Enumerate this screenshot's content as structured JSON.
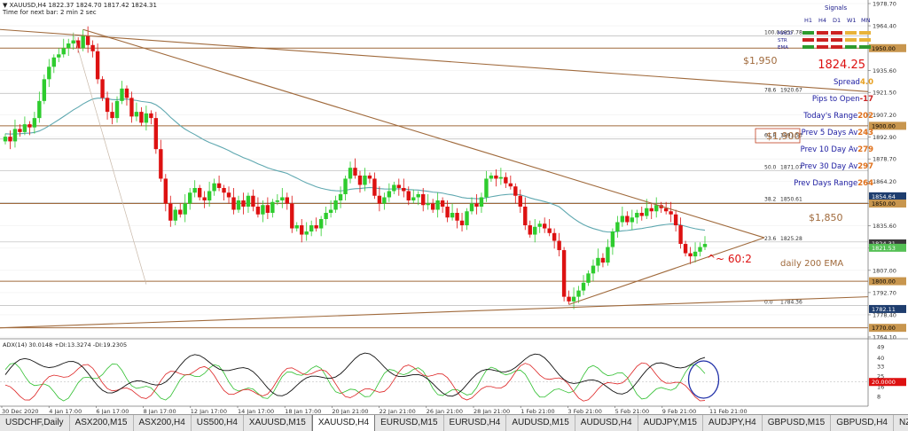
{
  "header": {
    "symbol_line": "▼ XAUUSD,H4 1822.37 1824.70 1817.42 1824.31",
    "timer_line": "Time for next bar: 2 min 2 sec"
  },
  "signals": {
    "title": "Signals",
    "timeframes": [
      "H1",
      "H4",
      "D1",
      "W1",
      "MN"
    ],
    "rows": [
      {
        "label": "MACD",
        "colors": [
          "#2e9a2e",
          "#cc2222",
          "#cc2222",
          "#e8b33a",
          "#e8b33a"
        ]
      },
      {
        "label": "STR",
        "colors": [
          "#cc2222",
          "#cc2222",
          "#cc2222",
          "#e8b33a",
          "#e8b33a"
        ]
      },
      {
        "label": "EMA",
        "colors": [
          "#2e9a2e",
          "#cc2222",
          "#cc2222",
          "#2e9a2e",
          "#2e9a2e"
        ]
      }
    ]
  },
  "info_panel": {
    "price": "1824.25",
    "rows": [
      {
        "label": "Spread",
        "value": "4.0",
        "color": "#e8a020"
      },
      {
        "label": "Pips to Open",
        "value": "-17",
        "color": "#cc2222"
      },
      {
        "label": "Today's Range",
        "value": "202",
        "color": "#e0701a"
      },
      {
        "label": "Prev 5 Days Av",
        "value": "243",
        "color": "#e0701a"
      },
      {
        "label": "Prev 10 Day Av",
        "value": "279",
        "color": "#e0701a"
      },
      {
        "label": "Prev 30 Day Av",
        "value": "297",
        "color": "#e0701a"
      },
      {
        "label": "Prev Days Range",
        "value": "264",
        "color": "#e0701a"
      }
    ]
  },
  "annotations": {
    "level_1950": "$1,950",
    "level_1900": "$1,900",
    "level_1850": "$1,850",
    "ratio": "^~ 60:2",
    "ema": "daily 200 EMA"
  },
  "fib_levels": [
    {
      "label": "100.0",
      "price": "1957.78",
      "value": 1957.78
    },
    {
      "label": "78.6",
      "price": "1920.67",
      "value": 1920.67
    },
    {
      "label": "61.8",
      "price": "1891.53",
      "value": 1891.53
    },
    {
      "label": "50.0",
      "price": "1871.07",
      "value": 1871.07
    },
    {
      "label": "38.2",
      "price": "1850.61",
      "value": 1850.61
    },
    {
      "label": "23.6",
      "price": "1825.28",
      "value": 1825.28
    },
    {
      "label": "0.0",
      "price": "1784.36",
      "value": 1784.36
    }
  ],
  "price_axis": {
    "ticks": [
      "1978.70",
      "1964.40",
      "1950.00",
      "1935.60",
      "1921.50",
      "1907.20",
      "1892.90",
      "1878.70",
      "1864.20",
      "1849.90",
      "1835.60",
      "1821.30",
      "1807.00",
      "1792.70",
      "1778.40",
      "1764.10"
    ],
    "markers": [
      {
        "text": "1950.00",
        "value": 1950.0,
        "bg": "#c8964e",
        "fg": "#000000"
      },
      {
        "text": "1900.00",
        "value": 1900.0,
        "bg": "#c8964e",
        "fg": "#000000"
      },
      {
        "text": "1854.64",
        "value": 1854.64,
        "bg": "#1e3d6e",
        "fg": "#ffffff"
      },
      {
        "text": "1850.00",
        "value": 1850.0,
        "bg": "#c8964e",
        "fg": "#000000"
      },
      {
        "text": "1824.31",
        "value": 1824.31,
        "bg": "#3a3a3a",
        "fg": "#ffffff"
      },
      {
        "text": "1821.53",
        "value": 1821.53,
        "bg": "#55c055",
        "fg": "#ffffff"
      },
      {
        "text": "1800.00",
        "value": 1800.0,
        "bg": "#c8964e",
        "fg": "#000000"
      },
      {
        "text": "1782.11",
        "value": 1782.11,
        "bg": "#1e3d6e",
        "fg": "#ffffff"
      },
      {
        "text": "1770.00",
        "value": 1770.0,
        "bg": "#c8964e",
        "fg": "#000000"
      }
    ]
  },
  "adx": {
    "label": "ADX(14) 30.0148 +DI:13.3274 -DI:19.2305",
    "ticks": [
      "49",
      "40",
      "33",
      "25",
      "16",
      "8"
    ],
    "marker": "20.0000",
    "marker_value": 20
  },
  "time_axis": {
    "labels": [
      "30 Dec 2020",
      "4 Jan 17:00",
      "6 Jan 17:00",
      "8 Jan 17:00",
      "12 Jan 17:00",
      "14 Jan 17:00",
      "18 Jan 17:00",
      "20 Jan 21:00",
      "22 Jan 21:00",
      "26 Jan 21:00",
      "28 Jan 21:00",
      "1 Feb 21:00",
      "3 Feb 21:00",
      "5 Feb 21:00",
      "9 Feb 21:00",
      "11 Feb 21:00"
    ]
  },
  "tabs": [
    {
      "label": "USDCHF,Daily",
      "active": false
    },
    {
      "label": "ASX200,M15",
      "active": false
    },
    {
      "label": "ASX200,H4",
      "active": false
    },
    {
      "label": "US500,H4",
      "active": false
    },
    {
      "label": "XAUUSD,M15",
      "active": false
    },
    {
      "label": "XAUUSD,H4",
      "active": true
    },
    {
      "label": "EURUSD,M15",
      "active": false
    },
    {
      "label": "EURUSD,H4",
      "active": false
    },
    {
      "label": "AUDUSD,M15",
      "active": false
    },
    {
      "label": "AUDUSD,H4",
      "active": false
    },
    {
      "label": "AUDJPY,M15",
      "active": false
    },
    {
      "label": "AUDJPY,H4",
      "active": false
    },
    {
      "label": "GBPUSD,M15",
      "active": false
    },
    {
      "label": "GBPUSD,H4",
      "active": false
    },
    {
      "label": "NZDUSD,M15",
      "active": false
    },
    {
      "label": "NZDUSD,H4",
      "active": false
    },
    {
      "label": "USDJPY,M15",
      "active": false
    }
  ],
  "colors": {
    "bull": "#2ecc2e",
    "bear": "#dd1111",
    "trendline": "#a06a3c",
    "level": "#a06a3c",
    "ema": "#5fa8b0",
    "adx": "#111111",
    "plus_di": "#2ebf2e",
    "minus_di": "#dd2222",
    "ellipse": "#2030a8"
  },
  "chart_data": {
    "type": "candlestick",
    "timeframe": "H4",
    "ylim": [
      1764.1,
      1978.7
    ],
    "closes": [
      1893,
      1890,
      1898,
      1896,
      1901,
      1899,
      1905,
      1916,
      1930,
      1938,
      1944,
      1946,
      1950,
      1953,
      1955,
      1950,
      1958,
      1952,
      1948,
      1930,
      1918,
      1909,
      1905,
      1916,
      1924,
      1918,
      1906,
      1909,
      1902,
      1908,
      1905,
      1885,
      1866,
      1850,
      1839,
      1846,
      1843,
      1850,
      1857,
      1860,
      1854,
      1852,
      1858,
      1863,
      1860,
      1857,
      1854,
      1846,
      1852,
      1848,
      1855,
      1848,
      1843,
      1849,
      1844,
      1851,
      1852,
      1854,
      1850,
      1834,
      1836,
      1830,
      1832,
      1836,
      1834,
      1840,
      1844,
      1846,
      1852,
      1856,
      1866,
      1873,
      1868,
      1862,
      1868,
      1866,
      1855,
      1850,
      1854,
      1858,
      1862,
      1860,
      1858,
      1852,
      1854,
      1856,
      1849,
      1850,
      1846,
      1852,
      1848,
      1841,
      1844,
      1839,
      1836,
      1845,
      1850,
      1848,
      1854,
      1866,
      1868,
      1866,
      1867,
      1863,
      1861,
      1855,
      1848,
      1836,
      1830,
      1835,
      1837,
      1834,
      1831,
      1826,
      1820,
      1790,
      1787,
      1790,
      1794,
      1799,
      1805,
      1810,
      1815,
      1812,
      1822,
      1832,
      1838,
      1842,
      1838,
      1841,
      1844,
      1842,
      1847,
      1845,
      1849,
      1847,
      1845,
      1843,
      1836,
      1824,
      1818,
      1816,
      1819,
      1822,
      1824
    ]
  }
}
